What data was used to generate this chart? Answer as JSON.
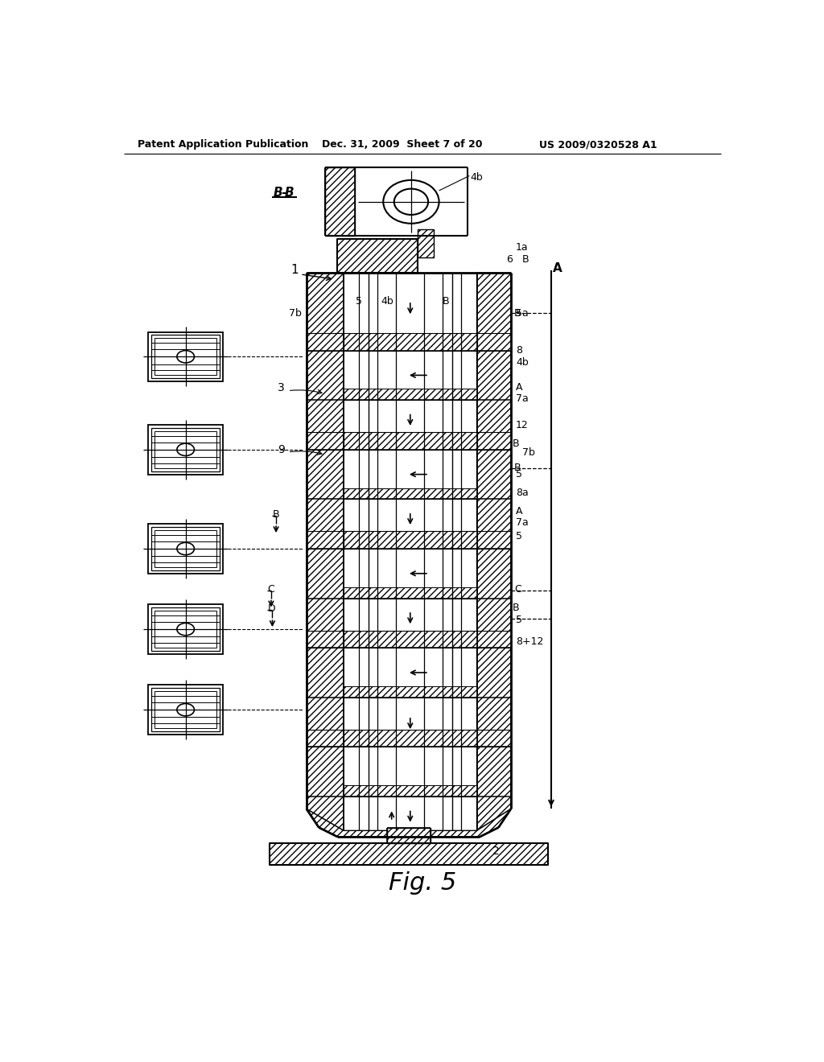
{
  "header_left": "Patent Application Publication",
  "header_mid": "Dec. 31, 2009  Sheet 7 of 20",
  "header_right": "US 2009/0320528 A1",
  "bg_color": "#ffffff",
  "fig_label": "Fig. 5"
}
